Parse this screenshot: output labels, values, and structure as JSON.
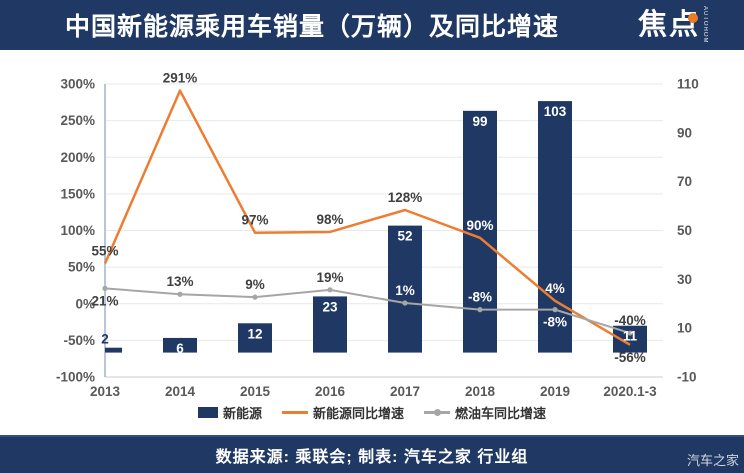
{
  "header": {
    "title": "中国新能源乘用车销量（万辆）及同比增速",
    "logo": {
      "text": "焦点",
      "subtext": "AUTOHOME",
      "dot_color": "#e87c22"
    }
  },
  "legend": {
    "items": [
      {
        "label": "新能源",
        "swatch": "bar",
        "color": "#1f3864"
      },
      {
        "label": "新能源同比增速",
        "swatch": "line",
        "color": "#ed7d31"
      },
      {
        "label": "燃油车同比增速",
        "swatch": "line-dot",
        "color": "#a6a6a6"
      }
    ]
  },
  "footer": {
    "source": "数据来源: 乘联会; 制表: 汽车之家 行业组",
    "watermark": "汽车之家"
  },
  "colors": {
    "header_bg": "#1f3864",
    "footer_bg": "#1f3864",
    "bar": "#1f3864",
    "orange": "#ed7d31",
    "gray": "#a6a6a6",
    "grid": "#e9e9e9",
    "axis_line": "#9fb3d4",
    "baseline": "#cccccc",
    "tick_text": "#595959",
    "label_dark": "#404040",
    "label_light": "#ffffff"
  },
  "chart_data": {
    "type": "bar",
    "title": "中国新能源乘用车销量（万辆）及同比增速",
    "categories": [
      "2013",
      "2014",
      "2015",
      "2016",
      "2017",
      "2018",
      "2019",
      "2020.1-3"
    ],
    "series": [
      {
        "name": "新能源",
        "kind": "bar",
        "axis": "right",
        "unit": "万辆",
        "values": [
          2,
          6,
          12,
          23,
          52,
          99,
          103,
          11
        ],
        "labels": [
          "2",
          "6",
          "12",
          "23",
          "52",
          "99",
          "103",
          "11"
        ],
        "label_pos": [
          "above",
          "inside",
          "inside",
          "inside",
          "inside",
          "inside",
          "inside",
          "inside"
        ],
        "label_tone": [
          "bar",
          "light",
          "light",
          "light",
          "light",
          "light",
          "light",
          "light"
        ]
      },
      {
        "name": "新能源同比增速",
        "kind": "line",
        "axis": "left",
        "values": [
          55,
          291,
          97,
          98,
          128,
          90,
          4,
          -56
        ],
        "labels": [
          "55%",
          "291%",
          "97%",
          "98%",
          "128%",
          "90%",
          "4%",
          "-56%"
        ],
        "label_pos": [
          "above",
          "above",
          "above",
          "above",
          "above",
          "above",
          "above",
          "below"
        ],
        "label_tone": [
          "dark",
          "dark",
          "dark",
          "dark",
          "dark",
          "light",
          "light",
          "dark"
        ]
      },
      {
        "name": "燃油车同比增速",
        "kind": "line",
        "axis": "left",
        "marker": true,
        "values": [
          21,
          13,
          9,
          19,
          1,
          -8,
          -8,
          -40
        ],
        "labels": [
          "21%",
          "13%",
          "9%",
          "19%",
          "1%",
          "-8%",
          "-8%",
          "-40%"
        ],
        "label_pos": [
          "below",
          "above",
          "above",
          "above",
          "above",
          "above",
          "below",
          "above"
        ],
        "label_tone": [
          "dark",
          "dark",
          "dark",
          "dark",
          "light",
          "light",
          "light",
          "dark"
        ]
      }
    ],
    "left_axis": {
      "min": -100,
      "max": 300,
      "tick_labels": [
        "300%",
        "250%",
        "200%",
        "150%",
        "100%",
        "50%",
        "0%",
        "-50%",
        "-100%"
      ]
    },
    "right_axis": {
      "min": -10,
      "max": 110,
      "tick_labels": [
        "110",
        "90",
        "70",
        "50",
        "30",
        "10",
        "-10"
      ]
    },
    "grid": true,
    "legend_position": "bottom"
  }
}
